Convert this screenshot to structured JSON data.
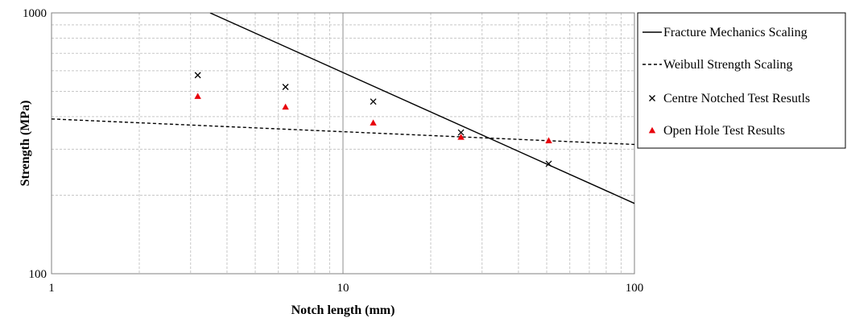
{
  "chart_data": {
    "type": "line",
    "title": "",
    "xlabel": "Notch length (mm)",
    "ylabel": "Strength (MPa)",
    "x_scale": "log",
    "y_scale": "log",
    "xlim": [
      1,
      100
    ],
    "ylim": [
      100,
      1000
    ],
    "x_tick_labels": [
      "1",
      "10",
      "100"
    ],
    "y_tick_labels": [
      "100",
      "1000"
    ],
    "grid": true,
    "legend_position": "right",
    "series": [
      {
        "name": "Fracture Mechanics Scaling",
        "kind": "line",
        "style": "solid",
        "color": "#000000",
        "x": [
          3.5,
          100
        ],
        "y": [
          1000,
          186
        ]
      },
      {
        "name": "Weibull Strength Scaling",
        "kind": "line",
        "style": "dashed",
        "color": "#000000",
        "x": [
          1,
          100
        ],
        "y": [
          392,
          313
        ]
      },
      {
        "name": "Centre Notched Test Resutls",
        "kind": "scatter",
        "marker": "x",
        "color": "#000000",
        "x": [
          3.175,
          6.35,
          12.7,
          25.4,
          50.8
        ],
        "y": [
          577,
          520,
          457,
          348,
          264
        ]
      },
      {
        "name": "Open Hole Test Results",
        "kind": "scatter",
        "marker": "triangle",
        "color": "#e8000b",
        "x": [
          3.175,
          6.35,
          12.7,
          25.4,
          50.8
        ],
        "y": [
          479,
          436,
          379,
          334,
          324
        ]
      }
    ]
  }
}
